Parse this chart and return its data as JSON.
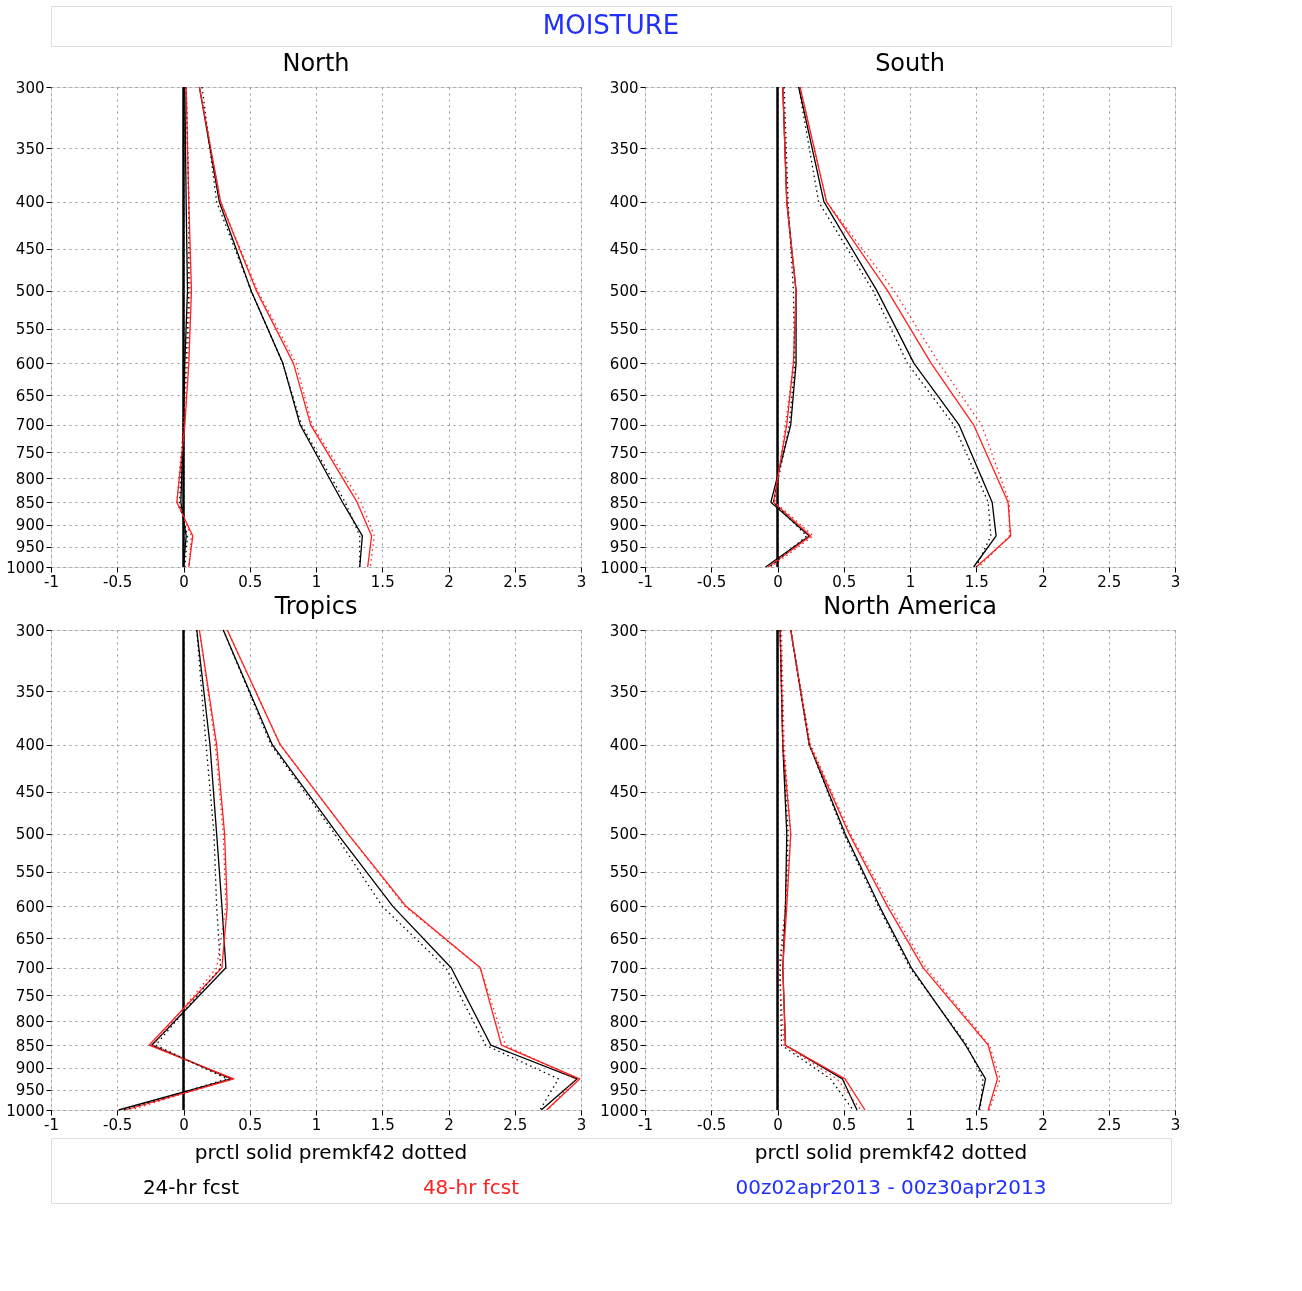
{
  "chart_data": [
    {
      "type": "line",
      "title": "North",
      "annotations": [
        "MOISTURE"
      ],
      "xlim": [
        -1,
        3
      ],
      "xticks": [
        -1,
        -0.5,
        0,
        0.5,
        1,
        1.5,
        2,
        2.5,
        3
      ],
      "ylim": [
        1000,
        300
      ],
      "yticks": [
        300,
        350,
        400,
        450,
        500,
        550,
        600,
        650,
        700,
        750,
        800,
        850,
        900,
        950,
        1000
      ],
      "log": "y",
      "grid": true,
      "ref_lines": [
        {
          "axis": "x",
          "value": 0
        }
      ],
      "series": [
        {
          "color": "#000000",
          "line_style": "solid",
          "x": [
            0.12,
            0.27,
            0.51,
            0.75,
            0.88,
            1.2,
            1.35,
            1.33
          ],
          "values": [
            300,
            400,
            500,
            600,
            700,
            850,
            925,
            1000
          ]
        },
        {
          "color": "#ff2020",
          "line_style": "solid",
          "x": [
            0.12,
            0.28,
            0.55,
            0.83,
            0.96,
            1.31,
            1.42,
            1.39
          ],
          "values": [
            300,
            400,
            500,
            600,
            700,
            850,
            925,
            1000
          ]
        },
        {
          "color": "#000000",
          "line_style": "dotted",
          "x": [
            0.14,
            0.25,
            0.51,
            0.75,
            0.89,
            1.22,
            1.33,
            1.33
          ],
          "values": [
            300,
            400,
            500,
            600,
            700,
            850,
            925,
            1000
          ]
        },
        {
          "color": "#ff2020",
          "line_style": "dotted",
          "x": [
            0.12,
            0.28,
            0.56,
            0.85,
            0.97,
            1.34,
            1.44,
            1.41
          ],
          "values": [
            300,
            400,
            500,
            600,
            700,
            850,
            925,
            1000
          ]
        },
        {
          "color": "#000000",
          "line_style": "solid",
          "x": [
            0.01,
            0.02,
            0.03,
            0.01,
            0,
            -0.02,
            0.02,
            0
          ],
          "values": [
            300,
            400,
            500,
            600,
            700,
            850,
            925,
            1000
          ]
        },
        {
          "color": "#ff2020",
          "line_style": "solid",
          "x": [
            0.02,
            0.04,
            0.06,
            0.04,
            0.01,
            -0.05,
            0.07,
            0.04
          ],
          "values": [
            300,
            400,
            500,
            600,
            700,
            850,
            925,
            1000
          ]
        },
        {
          "color": "#000000",
          "line_style": "dotted",
          "x": [
            0.02,
            0.04,
            0.04,
            0.02,
            0,
            -0.03,
            0.03,
            0.01
          ],
          "values": [
            300,
            400,
            500,
            600,
            700,
            850,
            925,
            1000
          ]
        },
        {
          "color": "#ff2020",
          "line_style": "dotted",
          "x": [
            0.02,
            0.04,
            0.05,
            0.03,
            0,
            -0.05,
            0.06,
            0.04
          ],
          "values": [
            300,
            400,
            500,
            600,
            700,
            850,
            925,
            1000
          ]
        }
      ]
    },
    {
      "type": "line",
      "title": "South",
      "xlim": [
        -1,
        3
      ],
      "xticks": [
        -1,
        -0.5,
        0,
        0.5,
        1,
        1.5,
        2,
        2.5,
        3
      ],
      "ylim": [
        1000,
        300
      ],
      "yticks": [
        300,
        350,
        400,
        450,
        500,
        550,
        600,
        650,
        700,
        750,
        800,
        850,
        900,
        950,
        1000
      ],
      "log": "y",
      "grid": true,
      "ref_lines": [
        {
          "axis": "x",
          "value": 0
        }
      ],
      "series": [
        {
          "color": "#000000",
          "line_style": "solid",
          "x": [
            0.16,
            0.35,
            0.75,
            1.03,
            1.37,
            1.62,
            1.65,
            1.48
          ],
          "values": [
            300,
            400,
            500,
            600,
            700,
            850,
            925,
            1000
          ]
        },
        {
          "color": "#ff2020",
          "line_style": "solid",
          "x": [
            0.17,
            0.37,
            0.83,
            1.16,
            1.48,
            1.74,
            1.76,
            1.5
          ],
          "values": [
            300,
            400,
            500,
            600,
            700,
            850,
            925,
            1000
          ]
        },
        {
          "color": "#000000",
          "line_style": "dotted",
          "x": [
            0.16,
            0.31,
            0.72,
            0.98,
            1.33,
            1.59,
            1.61,
            1.5
          ],
          "values": [
            300,
            400,
            500,
            600,
            700,
            850,
            925,
            1000
          ]
        },
        {
          "color": "#ff2020",
          "line_style": "dotted",
          "x": [
            0.17,
            0.37,
            0.88,
            1.22,
            1.54,
            1.75,
            1.75,
            1.52
          ],
          "values": [
            300,
            400,
            500,
            600,
            700,
            850,
            925,
            1000
          ]
        },
        {
          "color": "#000000",
          "line_style": "solid",
          "x": [
            0.04,
            0.07,
            0.14,
            0.14,
            0.1,
            -0.05,
            0.24,
            -0.09
          ],
          "values": [
            300,
            400,
            500,
            600,
            700,
            850,
            925,
            1000
          ]
        },
        {
          "color": "#ff2020",
          "line_style": "solid",
          "x": [
            0.04,
            0.07,
            0.14,
            0.12,
            0.07,
            -0.03,
            0.25,
            -0.07
          ],
          "values": [
            300,
            400,
            500,
            600,
            700,
            850,
            925,
            1000
          ]
        },
        {
          "color": "#000000",
          "line_style": "dotted",
          "x": [
            0.05,
            0.08,
            0.12,
            0.13,
            0.09,
            -0.03,
            0.22,
            -0.06
          ],
          "values": [
            300,
            400,
            500,
            600,
            700,
            850,
            925,
            1000
          ]
        },
        {
          "color": "#ff2020",
          "line_style": "dotted",
          "x": [
            0.04,
            0.07,
            0.14,
            0.12,
            0.06,
            -0.02,
            0.27,
            -0.05
          ],
          "values": [
            300,
            400,
            500,
            600,
            700,
            850,
            925,
            1000
          ]
        }
      ]
    },
    {
      "type": "line",
      "title": "Tropics",
      "annotations": [
        "prctl  solid     premkf42  dotted",
        "24-hr  fcst",
        "48-hr  fcst"
      ],
      "xlim": [
        -1,
        3
      ],
      "xticks": [
        -1,
        -0.5,
        0,
        0.5,
        1,
        1.5,
        2,
        2.5,
        3
      ],
      "ylim": [
        1000,
        300
      ],
      "yticks": [
        300,
        350,
        400,
        450,
        500,
        550,
        600,
        650,
        700,
        750,
        800,
        850,
        900,
        950,
        1000
      ],
      "log": "y",
      "grid": true,
      "ref_lines": [
        {
          "axis": "x",
          "value": 0
        }
      ],
      "series": [
        {
          "color": "#000000",
          "line_style": "solid",
          "x": [
            0.3,
            0.67,
            1.16,
            1.58,
            2.02,
            2.32,
            2.97,
            2.7
          ],
          "values": [
            300,
            400,
            500,
            600,
            700,
            850,
            925,
            1000
          ]
        },
        {
          "color": "#ff2020",
          "line_style": "solid",
          "x": [
            0.33,
            0.73,
            1.24,
            1.68,
            2.24,
            2.4,
            2.99,
            2.74
          ],
          "values": [
            300,
            400,
            500,
            600,
            700,
            850,
            925,
            1000
          ]
        },
        {
          "color": "#000000",
          "line_style": "dotted",
          "x": [
            0.3,
            0.66,
            1.14,
            1.5,
            1.98,
            2.28,
            2.83,
            2.69
          ],
          "values": [
            300,
            400,
            500,
            600,
            700,
            850,
            925,
            1000
          ]
        },
        {
          "color": "#ff2020",
          "line_style": "dotted",
          "x": [
            0.33,
            0.73,
            1.24,
            1.67,
            2.24,
            2.43,
            2.96,
            2.75
          ],
          "values": [
            300,
            400,
            500,
            600,
            700,
            850,
            925,
            1000
          ]
        },
        {
          "color": "#000000",
          "line_style": "solid",
          "x": [
            0.1,
            0.2,
            0.25,
            0.29,
            0.32,
            -0.24,
            0.36,
            -0.49
          ],
          "values": [
            300,
            400,
            500,
            600,
            700,
            850,
            925,
            1000
          ]
        },
        {
          "color": "#ff2020",
          "line_style": "solid",
          "x": [
            0.12,
            0.25,
            0.31,
            0.33,
            0.29,
            -0.26,
            0.38,
            -0.44
          ],
          "values": [
            300,
            400,
            500,
            600,
            700,
            850,
            925,
            1000
          ]
        },
        {
          "color": "#000000",
          "line_style": "dotted",
          "x": [
            0.1,
            0.17,
            0.23,
            0.25,
            0.28,
            -0.21,
            0.33,
            -0.45
          ],
          "values": [
            300,
            400,
            500,
            600,
            700,
            850,
            925,
            1000
          ]
        },
        {
          "color": "#ff2020",
          "line_style": "dotted",
          "x": [
            0.12,
            0.24,
            0.3,
            0.32,
            0.25,
            -0.23,
            0.36,
            -0.4
          ],
          "values": [
            300,
            400,
            500,
            600,
            700,
            850,
            925,
            1000
          ]
        }
      ]
    },
    {
      "type": "line",
      "title": "North  America",
      "annotations": [
        "prctl  solid     premkf42  dotted",
        "00z02apr2013 - 00z30apr2013"
      ],
      "xlim": [
        -1,
        3
      ],
      "xticks": [
        -1,
        -0.5,
        0,
        0.5,
        1,
        1.5,
        2,
        2.5,
        3
      ],
      "ylim": [
        1000,
        300
      ],
      "yticks": [
        300,
        350,
        400,
        450,
        500,
        550,
        600,
        650,
        700,
        750,
        800,
        850,
        900,
        950,
        1000
      ],
      "log": "y",
      "grid": true,
      "ref_lines": [
        {
          "axis": "x",
          "value": 0
        }
      ],
      "series": [
        {
          "color": "#000000",
          "line_style": "solid",
          "x": [
            0.1,
            0.24,
            0.51,
            0.77,
            1.01,
            1.42,
            1.57,
            1.52
          ],
          "values": [
            300,
            400,
            500,
            600,
            700,
            850,
            925,
            1000
          ]
        },
        {
          "color": "#ff2020",
          "line_style": "solid",
          "x": [
            0.1,
            0.24,
            0.54,
            0.83,
            1.1,
            1.59,
            1.66,
            1.59
          ],
          "values": [
            300,
            400,
            500,
            600,
            700,
            850,
            925,
            1000
          ]
        },
        {
          "color": "#000000",
          "line_style": "dotted",
          "x": [
            0.1,
            0.24,
            0.5,
            0.76,
            1.0,
            1.43,
            1.55,
            1.53
          ],
          "values": [
            300,
            400,
            500,
            600,
            700,
            850,
            925,
            1000
          ]
        },
        {
          "color": "#ff2020",
          "line_style": "dotted",
          "x": [
            0.1,
            0.25,
            0.55,
            0.85,
            1.12,
            1.6,
            1.68,
            1.6
          ],
          "values": [
            300,
            400,
            500,
            600,
            700,
            850,
            925,
            1000
          ]
        },
        {
          "color": "#000000",
          "line_style": "solid",
          "x": [
            0.02,
            0.04,
            0.07,
            0.06,
            0.04,
            0.06,
            0.49,
            0.6
          ],
          "values": [
            300,
            400,
            500,
            600,
            700,
            850,
            925,
            1000
          ]
        },
        {
          "color": "#ff2020",
          "line_style": "solid",
          "x": [
            0.02,
            0.04,
            0.1,
            0.07,
            0.04,
            0.06,
            0.51,
            0.66
          ],
          "values": [
            300,
            400,
            500,
            600,
            700,
            850,
            925,
            1000
          ]
        },
        {
          "color": "#000000",
          "line_style": "dotted",
          "x": [
            0.02,
            0.04,
            0.08,
            0.06,
            0.02,
            0.03,
            0.4,
            0.57
          ],
          "values": [
            300,
            400,
            500,
            600,
            700,
            850,
            925,
            1000
          ]
        },
        {
          "color": "#ff2020",
          "line_style": "dotted",
          "x": [
            0.03,
            0.05,
            0.1,
            0.06,
            0.01,
            0.05,
            0.45,
            0.63
          ],
          "values": [
            300,
            400,
            500,
            600,
            700,
            850,
            925,
            1000
          ]
        }
      ]
    }
  ]
}
